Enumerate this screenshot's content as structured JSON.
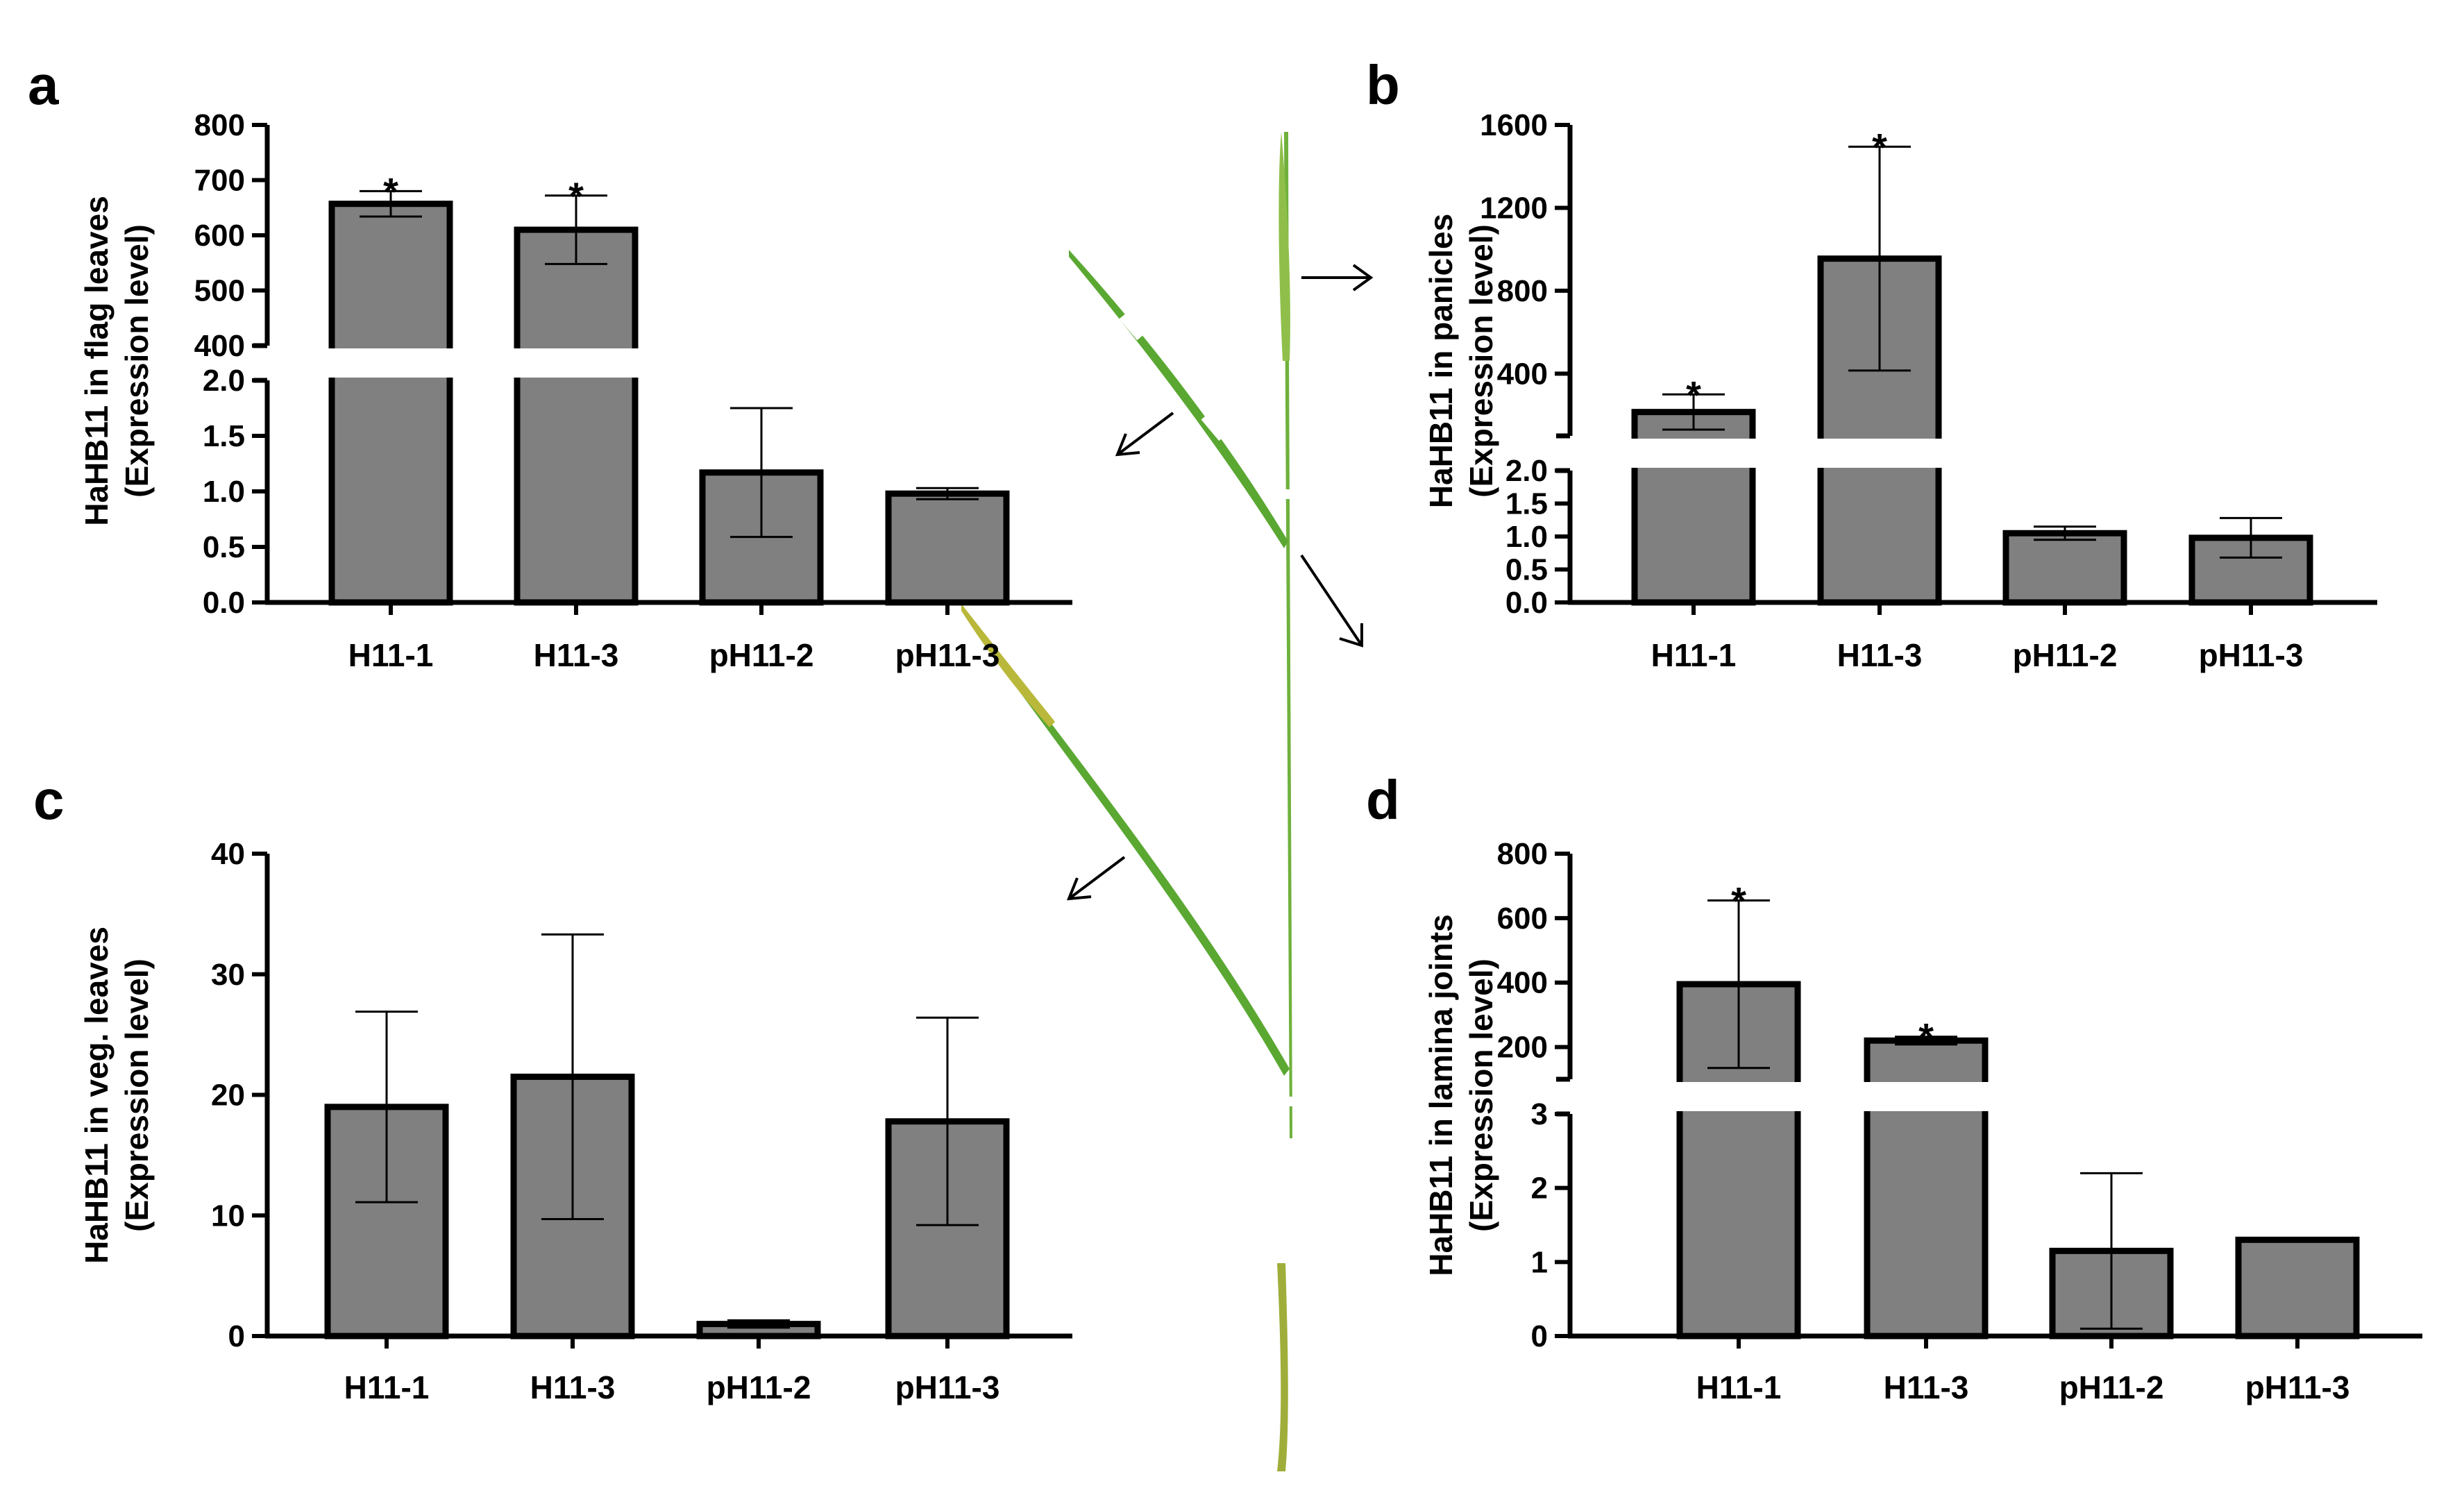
{
  "colors": {
    "bar_fill": "#808080",
    "stroke": "#000000",
    "leaf_green": "#5aa832",
    "leaf_yellow": "#b9b83a"
  },
  "chart_data": [
    {
      "panel": "a",
      "type": "bar",
      "ylabel": "HaHB11 in flag leaves",
      "ylabel2": "(Expression level)",
      "categories": [
        "H11-1",
        "H11-3",
        "pH11-2",
        "pH11-3"
      ],
      "values": [
        657,
        610,
        1.17,
        0.98
      ],
      "errors": [
        23,
        62,
        0.58,
        0.05
      ],
      "significance": [
        "*",
        "*",
        "",
        ""
      ],
      "broken_axis": {
        "lower_range": [
          0,
          2.0
        ],
        "upper_range": [
          400,
          800
        ]
      },
      "lower_ticks": [
        "0.0",
        "0.5",
        "1.0",
        "1.5",
        "2.0"
      ],
      "upper_ticks": [
        "400",
        "500",
        "600",
        "700",
        "800"
      ]
    },
    {
      "panel": "b",
      "type": "bar",
      "ylabel": "HaHB11 in panicles",
      "ylabel2": "(Expression level)",
      "categories": [
        "H11-1",
        "H11-3",
        "pH11-2",
        "pH11-3"
      ],
      "values": [
        215,
        955,
        1.05,
        0.98
      ],
      "errors": [
        85,
        540,
        0.1,
        0.3
      ],
      "significance": [
        "*",
        "*",
        "",
        ""
      ],
      "broken_axis": {
        "lower_range": [
          0,
          2.0
        ],
        "upper_range": [
          100,
          1600
        ]
      },
      "lower_ticks": [
        "0.0",
        "0.5",
        "1.0",
        "1.5",
        "2.0"
      ],
      "upper_ticks": [
        "400",
        "800",
        "1200",
        "1600"
      ]
    },
    {
      "panel": "c",
      "type": "bar",
      "ylabel": "HaHB11 in veg. leaves",
      "ylabel2": "(Expression level)",
      "categories": [
        "H11-1",
        "H11-3",
        "pH11-2",
        "pH11-3"
      ],
      "values": [
        19,
        21.5,
        1.0,
        17.8
      ],
      "errors": [
        7.9,
        11.8,
        0.3,
        8.6
      ],
      "significance": [
        "",
        "",
        "",
        ""
      ],
      "ylim": [
        0,
        40
      ],
      "ticks": [
        "0",
        "10",
        "20",
        "30",
        "40"
      ]
    },
    {
      "panel": "d",
      "type": "bar",
      "ylabel": "HaHB11 in lamina joints",
      "ylabel2": "(Expression level)",
      "categories": [
        "H11-1",
        "H11-3",
        "pH11-2",
        "pH11-3"
      ],
      "values": [
        395,
        220,
        1.15,
        1.3
      ],
      "errors": [
        260,
        12,
        1.05,
        0.0
      ],
      "significance": [
        "*",
        "*",
        "",
        ""
      ],
      "broken_axis": {
        "lower_range": [
          0,
          3
        ],
        "upper_range": [
          100,
          800
        ]
      },
      "lower_ticks": [
        "0",
        "1",
        "2",
        "3"
      ],
      "upper_ticks": [
        "200",
        "400",
        "600",
        "800"
      ]
    }
  ]
}
